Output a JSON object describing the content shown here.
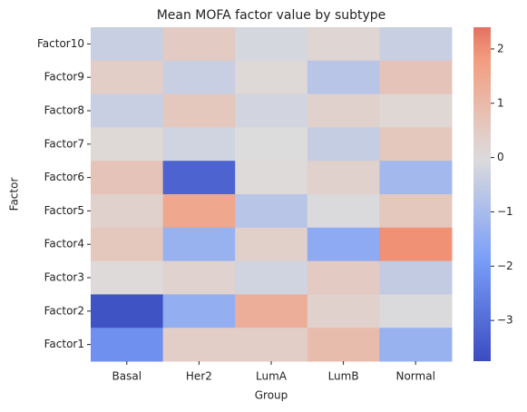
{
  "chart_data": {
    "type": "heatmap",
    "title": "Mean MOFA factor value by subtype",
    "x_label": "Group",
    "y_label": "Factor",
    "x_categories": [
      "Basal",
      "Her2",
      "LumA",
      "LumB",
      "Normal"
    ],
    "y_categories": [
      "Factor10",
      "Factor9",
      "Factor8",
      "Factor7",
      "Factor6",
      "Factor5",
      "Factor4",
      "Factor3",
      "Factor2",
      "Factor1"
    ],
    "values": [
      [
        -0.4,
        0.5,
        -0.15,
        0.2,
        -0.4
      ],
      [
        0.4,
        -0.4,
        0.1,
        -0.7,
        0.7
      ],
      [
        -0.4,
        0.6,
        -0.2,
        0.3,
        0.15
      ],
      [
        0.1,
        -0.25,
        0.0,
        -0.45,
        0.6
      ],
      [
        0.7,
        -3.2,
        0.05,
        0.3,
        -1.1
      ],
      [
        0.3,
        1.5,
        -0.7,
        -0.05,
        0.6
      ],
      [
        0.6,
        -1.3,
        0.35,
        -1.5,
        2.0
      ],
      [
        0.05,
        0.25,
        -0.25,
        0.5,
        -0.5
      ],
      [
        -3.6,
        -1.4,
        1.3,
        0.3,
        -0.05
      ],
      [
        -2.2,
        0.4,
        0.4,
        0.9,
        -1.3
      ]
    ],
    "colormap": "coolwarm",
    "center": 0,
    "clim": [
      -3.75,
      2.4
    ],
    "cticks": [
      {
        "value": -3,
        "label": "−3"
      },
      {
        "value": -2,
        "label": "−2"
      },
      {
        "value": -1,
        "label": "−1"
      },
      0,
      1,
      2
    ]
  }
}
